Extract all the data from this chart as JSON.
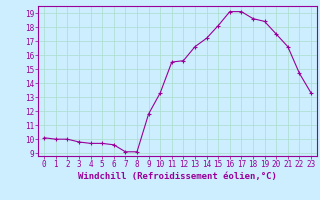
{
  "x": [
    0,
    1,
    2,
    3,
    4,
    5,
    6,
    7,
    8,
    9,
    10,
    11,
    12,
    13,
    14,
    15,
    16,
    17,
    18,
    19,
    20,
    21,
    22,
    23
  ],
  "y": [
    10.1,
    10.0,
    10.0,
    9.8,
    9.7,
    9.7,
    9.6,
    9.1,
    9.1,
    11.8,
    13.3,
    15.5,
    15.6,
    16.6,
    17.2,
    18.1,
    19.1,
    19.1,
    18.6,
    18.4,
    17.5,
    16.6,
    14.7,
    13.3
  ],
  "line_color": "#990099",
  "marker": "+",
  "marker_size": 3,
  "marker_color": "#990099",
  "bg_color": "#cceeff",
  "grid_color": "#aaddcc",
  "tick_color": "#990099",
  "label_color": "#990099",
  "xlabel": "Windchill (Refroidissement éolien,°C)",
  "ylabel": "",
  "xlim": [
    -0.5,
    23.5
  ],
  "ylim": [
    8.8,
    19.5
  ],
  "yticks": [
    9,
    10,
    11,
    12,
    13,
    14,
    15,
    16,
    17,
    18,
    19
  ],
  "xticks": [
    0,
    1,
    2,
    3,
    4,
    5,
    6,
    7,
    8,
    9,
    10,
    11,
    12,
    13,
    14,
    15,
    16,
    17,
    18,
    19,
    20,
    21,
    22,
    23
  ],
  "tick_fontsize": 5.5,
  "xlabel_fontsize": 6.5
}
